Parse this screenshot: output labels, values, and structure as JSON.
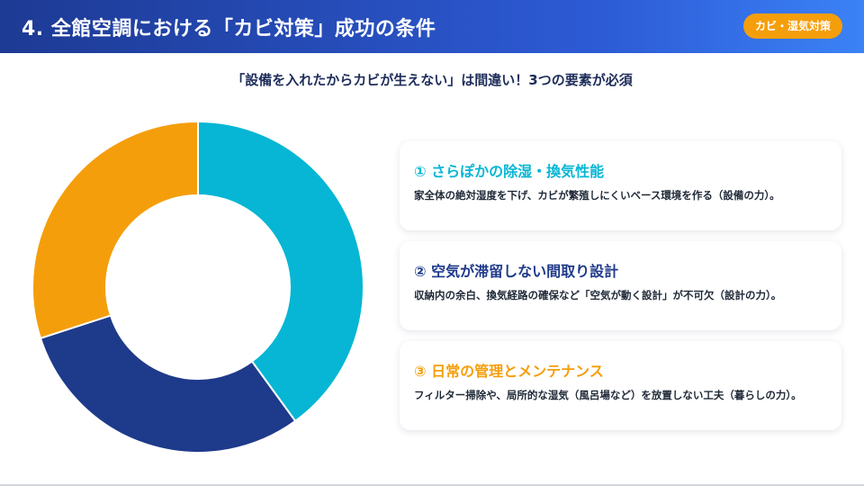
{
  "header": {
    "title": "4. 全館空調における「カビ対策」成功の条件",
    "badge": "カビ・湿気対策"
  },
  "subtitle": "「設備を入れたからカビが生えない」は間違い！3つの要素が必須",
  "colors": {
    "header_start": "#1d3a94",
    "header_end": "#3b82f6",
    "badge": "#f59e0b",
    "cyan": "#06b6d4",
    "navy": "#1e3a8a",
    "orange": "#f59e0b"
  },
  "chart_data": {
    "type": "pie",
    "donut": true,
    "values": [
      40,
      30,
      30
    ],
    "colors": [
      "#06b6d4",
      "#1e3a8a",
      "#f59e0b"
    ]
  },
  "cards": [
    {
      "title": "① さらぽかの除湿・換気性能",
      "description": "家全体の絶対湿度を下げ、カビが繁殖しにくいベース環境を作る（設備の力）。",
      "color": "#06b6d4"
    },
    {
      "title": "② 空気が滞留しない間取り設計",
      "description": "収納内の余白、換気経路の確保など「空気が動く設計」が不可欠（設計の力）。",
      "color": "#1e3a8a"
    },
    {
      "title": "③ 日常の管理とメンテナンス",
      "description": "フィルター掃除や、局所的な湿気（風呂場など）を放置しない工夫（暮らしの力）。",
      "color": "#f59e0b"
    }
  ]
}
